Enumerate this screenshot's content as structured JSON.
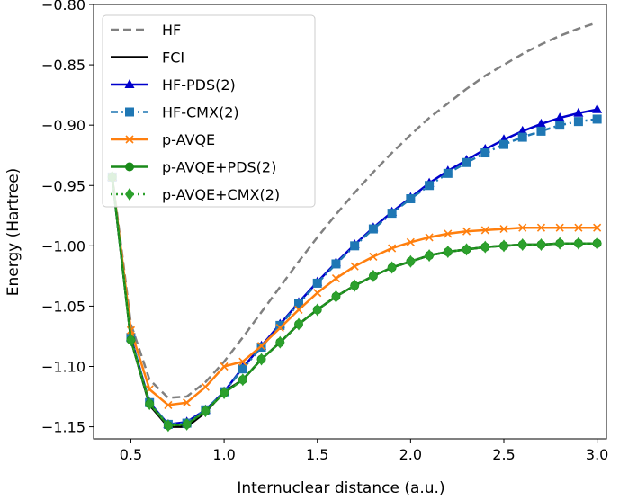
{
  "chart_data": {
    "type": "line",
    "xlabel": "Internuclear distance (a.u.)",
    "ylabel": "Energy (Hartree)",
    "xlim": [
      0.3,
      3.05
    ],
    "ylim": [
      -1.16,
      -0.8
    ],
    "x_ticks": [
      0.5,
      1.0,
      1.5,
      2.0,
      2.5,
      3.0
    ],
    "x_tick_labels": [
      "0.5",
      "1.0",
      "1.5",
      "2.0",
      "2.5",
      "3.0"
    ],
    "y_ticks": [
      -1.15,
      -1.1,
      -1.05,
      -1.0,
      -0.95,
      -0.9,
      -0.85,
      -0.8
    ],
    "y_tick_labels": [
      "−1.15",
      "−1.10",
      "−1.05",
      "−1.00",
      "−0.95",
      "−0.90",
      "−0.85",
      "−0.80"
    ],
    "legend_position": "top-left",
    "grid": false,
    "x": [
      0.4,
      0.5,
      0.6,
      0.7,
      0.8,
      0.9,
      1.0,
      1.1,
      1.2,
      1.3,
      1.4,
      1.5,
      1.6,
      1.7,
      1.8,
      1.9,
      2.0,
      2.1,
      2.2,
      2.3,
      2.4,
      2.5,
      2.6,
      2.7,
      2.8,
      2.9,
      3.0
    ],
    "series": [
      {
        "name": "HF",
        "color": "#808080",
        "dash": "dashed",
        "marker": "none",
        "values": [
          -0.941,
          -1.065,
          -1.111,
          -1.126,
          -1.125,
          -1.113,
          -1.096,
          -1.076,
          -1.055,
          -1.034,
          -1.013,
          -0.993,
          -0.974,
          -0.956,
          -0.939,
          -0.923,
          -0.908,
          -0.894,
          -0.882,
          -0.87,
          -0.859,
          -0.85,
          -0.841,
          -0.833,
          -0.826,
          -0.82,
          -0.815
        ]
      },
      {
        "name": "FCI",
        "color": "#000000",
        "dash": "solid",
        "marker": "none",
        "values": [
          -0.943,
          -1.078,
          -1.132,
          -1.15,
          -1.15,
          -1.138,
          -1.121,
          -1.111,
          -1.094,
          -1.08,
          -1.065,
          -1.053,
          -1.042,
          -1.033,
          -1.025,
          -1.018,
          -1.013,
          -1.008,
          -1.005,
          -1.003,
          -1.001,
          -1.0,
          -0.999,
          -0.999,
          -0.998,
          -0.998,
          -0.998
        ]
      },
      {
        "name": "HF-PDS(2)",
        "color": "#0000cc",
        "dash": "solid",
        "marker": "triangle",
        "values": [
          -0.943,
          -1.076,
          -1.13,
          -1.148,
          -1.146,
          -1.136,
          -1.121,
          -1.101,
          -1.083,
          -1.065,
          -1.047,
          -1.03,
          -1.014,
          -0.999,
          -0.985,
          -0.972,
          -0.96,
          -0.948,
          -0.938,
          -0.929,
          -0.92,
          -0.912,
          -0.905,
          -0.899,
          -0.894,
          -0.89,
          -0.887
        ]
      },
      {
        "name": "HF-CMX(2)",
        "color": "#1f77b4",
        "dash": "dashdot",
        "marker": "square",
        "values": [
          -0.943,
          -1.076,
          -1.13,
          -1.148,
          -1.147,
          -1.136,
          -1.121,
          -1.102,
          -1.084,
          -1.066,
          -1.048,
          -1.031,
          -1.015,
          -1.0,
          -0.986,
          -0.973,
          -0.961,
          -0.95,
          -0.94,
          -0.931,
          -0.923,
          -0.916,
          -0.91,
          -0.905,
          -0.9,
          -0.897,
          -0.895
        ]
      },
      {
        "name": "p-AVQE",
        "color": "#ff7f0e",
        "dash": "solid",
        "marker": "x",
        "values": [
          -0.943,
          -1.07,
          -1.119,
          -1.132,
          -1.13,
          -1.117,
          -1.1,
          -1.096,
          -1.083,
          -1.068,
          -1.053,
          -1.039,
          -1.027,
          -1.017,
          -1.009,
          -1.002,
          -0.997,
          -0.993,
          -0.99,
          -0.988,
          -0.987,
          -0.986,
          -0.985,
          -0.985,
          -0.985,
          -0.985,
          -0.985
        ]
      },
      {
        "name": "p-AVQE+PDS(2)",
        "color": "#1a8a1a",
        "dash": "solid",
        "marker": "circle",
        "values": [
          -0.943,
          -1.078,
          -1.131,
          -1.149,
          -1.148,
          -1.137,
          -1.122,
          -1.111,
          -1.094,
          -1.08,
          -1.065,
          -1.053,
          -1.042,
          -1.033,
          -1.025,
          -1.018,
          -1.013,
          -1.008,
          -1.005,
          -1.003,
          -1.001,
          -1.0,
          -0.999,
          -0.999,
          -0.998,
          -0.998,
          -0.998
        ]
      },
      {
        "name": "p-AVQE+CMX(2)",
        "color": "#2ca02c",
        "dash": "dotted",
        "marker": "diamond",
        "values": [
          -0.943,
          -1.078,
          -1.131,
          -1.149,
          -1.148,
          -1.137,
          -1.122,
          -1.111,
          -1.094,
          -1.08,
          -1.065,
          -1.053,
          -1.042,
          -1.033,
          -1.025,
          -1.018,
          -1.013,
          -1.008,
          -1.005,
          -1.003,
          -1.001,
          -1.0,
          -0.999,
          -0.999,
          -0.998,
          -0.998,
          -0.998
        ]
      }
    ]
  }
}
